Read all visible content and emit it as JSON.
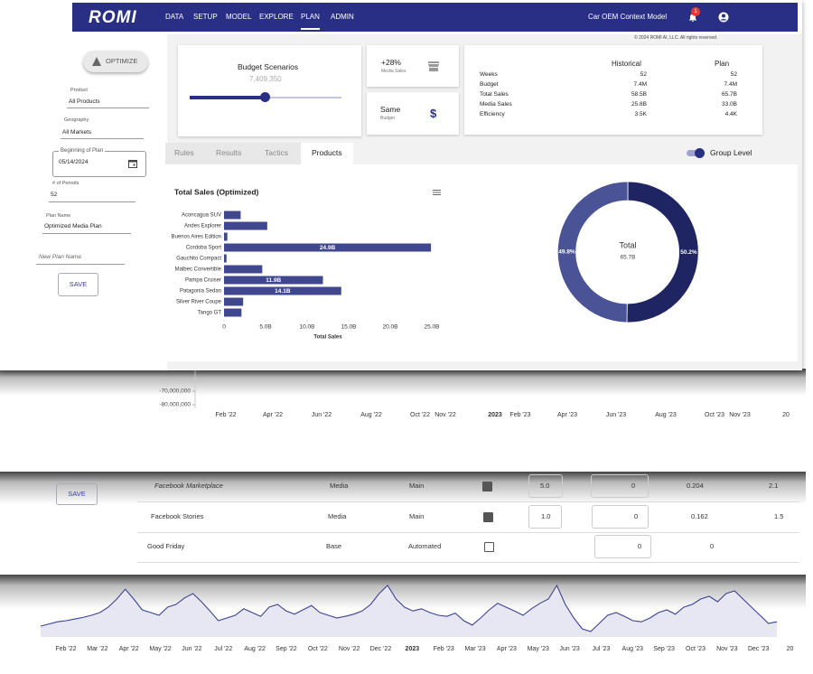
{
  "header": {
    "logo": "ROMI",
    "nav": [
      "DATA",
      "SETUP",
      "MODEL",
      "EXPLORE",
      "PLAN",
      "ADMIN"
    ],
    "model": "Car OEM Context Model",
    "notifications": 1,
    "copyright": "© 2024 ROMI AI, LLC. All rights reserved."
  },
  "sidebar": {
    "optimize": "OPTIMIZE",
    "fields": [
      {
        "label": "Product",
        "value": "All Products"
      },
      {
        "label": "Geography",
        "value": "All Markets"
      },
      {
        "label": "Beginning of Plan",
        "value": "05/14/2024"
      },
      {
        "label": "# of Periods",
        "value": 52
      },
      {
        "label": "Plan Name",
        "value": "Optimized Media Plan"
      }
    ],
    "new_plan_name": "New Plan Name",
    "save": "SAVE"
  },
  "budget": {
    "title": "Budget Scenarios",
    "value": "7,409,350"
  },
  "cards": [
    {
      "value": "+28%",
      "label": "Media Sales"
    },
    {
      "value": "Same",
      "label": "Budget",
      "symbol": "$"
    }
  ],
  "summary": {
    "headers": [
      "Historical",
      "Plan"
    ],
    "rows": [
      [
        "Weeks",
        52,
        52
      ],
      [
        "Budget",
        "7.4M",
        "7.4M"
      ],
      [
        "Total Sales",
        "58.5B",
        "65.7B"
      ],
      [
        "Media Sales",
        "25.8B",
        "33.0B"
      ],
      [
        "Efficiency",
        "3.5K",
        "4.4K"
      ]
    ]
  },
  "tabs": [
    "Rules",
    "Results",
    "Tactics",
    "Products"
  ],
  "toggle": {
    "label": "Group Level",
    "on": true
  },
  "chart_data": [
    {
      "type": "bar",
      "orientation": "horizontal",
      "title": "Total Sales (Optimized)",
      "categories": [
        "Aconcagua SUV",
        "Andes Explorer",
        "Buenos Aires Edition",
        "Cordoba Sport",
        "Gauchito Compact",
        "Malbec Convertible",
        "Pampa Cruiser",
        "Patagonia Sedan",
        "Silver River Coupe",
        "Tango GT"
      ],
      "values": [
        2.0,
        5.2,
        0.4,
        24.9,
        0.3,
        4.6,
        11.9,
        14.1,
        2.3,
        2.1
      ],
      "value_labels": [
        null,
        null,
        null,
        "24.9B",
        null,
        null,
        "11.9B",
        "14.1B",
        null,
        null
      ],
      "color": "#3f478f",
      "xlim": [
        0,
        25
      ],
      "xticks": [
        0,
        {
          "value": 5,
          "label": "5.0B"
        },
        {
          "value": 10,
          "label": "10.0B"
        },
        {
          "value": 15,
          "label": "15.0B"
        },
        {
          "value": 20,
          "label": "20.0B"
        },
        {
          "value": 25,
          "label": "25.0B"
        }
      ],
      "xlabel": "Total Sales"
    },
    {
      "type": "donut",
      "center_title": "Total",
      "center_value": "65.7B",
      "values": [
        50.2,
        49.8
      ],
      "value_labels": [
        "50.2%",
        "49.8%"
      ],
      "colors": [
        "#1f2462",
        "#4b5397"
      ]
    },
    {
      "type": "bar",
      "ylim": [
        -85000000,
        -55000000
      ],
      "yticks": [
        {
          "value": -70000000,
          "label": "-70,000,000"
        },
        {
          "value": -80000000,
          "label": "-80,000,000"
        }
      ],
      "xtick_labels": [
        "Feb '22",
        "Apr '22",
        "Jun '22",
        "Aug '22",
        "Oct '22",
        "Nov '22",
        "2023",
        "Feb '23",
        "Apr '23",
        "Jun '23",
        "Aug '23",
        "Oct '23",
        "Nov '23",
        "20"
      ]
    },
    {
      "type": "line",
      "color": "#3a4290",
      "ylim": [
        0,
        100
      ],
      "values": [
        20,
        24,
        28,
        30,
        33,
        36,
        40,
        45,
        55,
        70,
        88,
        70,
        50,
        45,
        40,
        55,
        60,
        72,
        80,
        65,
        48,
        30,
        35,
        40,
        52,
        45,
        38,
        55,
        60,
        48,
        42,
        50,
        58,
        45,
        40,
        35,
        38,
        42,
        48,
        60,
        80,
        95,
        70,
        55,
        48,
        52,
        45,
        40,
        38,
        44,
        30,
        22,
        35,
        50,
        62,
        55,
        48,
        40,
        52,
        62,
        70,
        95,
        60,
        35,
        15,
        10,
        25,
        40,
        45,
        38,
        30,
        28,
        35,
        45,
        50,
        42,
        55,
        60,
        70,
        75,
        65,
        80,
        85,
        70,
        55,
        40,
        25,
        28
      ],
      "xtick_labels": [
        "Feb '22",
        "Mar '22",
        "Apr '22",
        "May '22",
        "Jun '22",
        "Jul '22",
        "Aug '22",
        "Sep '22",
        "Oct '22",
        "Nov '22",
        "Dec '22",
        "2023",
        "Feb '23",
        "Mar '23",
        "Apr '23",
        "May '23",
        "Jun '23",
        "Jul '23",
        "Aug '23",
        "Sep '23",
        "Oct '23",
        "Nov '23",
        "Dec '23",
        "20"
      ]
    }
  ],
  "table": {
    "save": "SAVE",
    "rows": [
      {
        "name": "Facebook Marketplace",
        "type": "Media",
        "group": "Main",
        "checked": true,
        "cells": [
          "5.0",
          "0",
          "0.204",
          "2.1"
        ]
      },
      {
        "name": "Facebook Stories",
        "type": "Media",
        "group": "Main",
        "checked": true,
        "cells": [
          "1.0",
          "0",
          "0.162",
          "1.5"
        ]
      },
      {
        "name": "Good Friday",
        "type": "Base",
        "group": "Automated",
        "checked": false,
        "cells": [
          null,
          "0",
          "0",
          null
        ]
      }
    ]
  }
}
